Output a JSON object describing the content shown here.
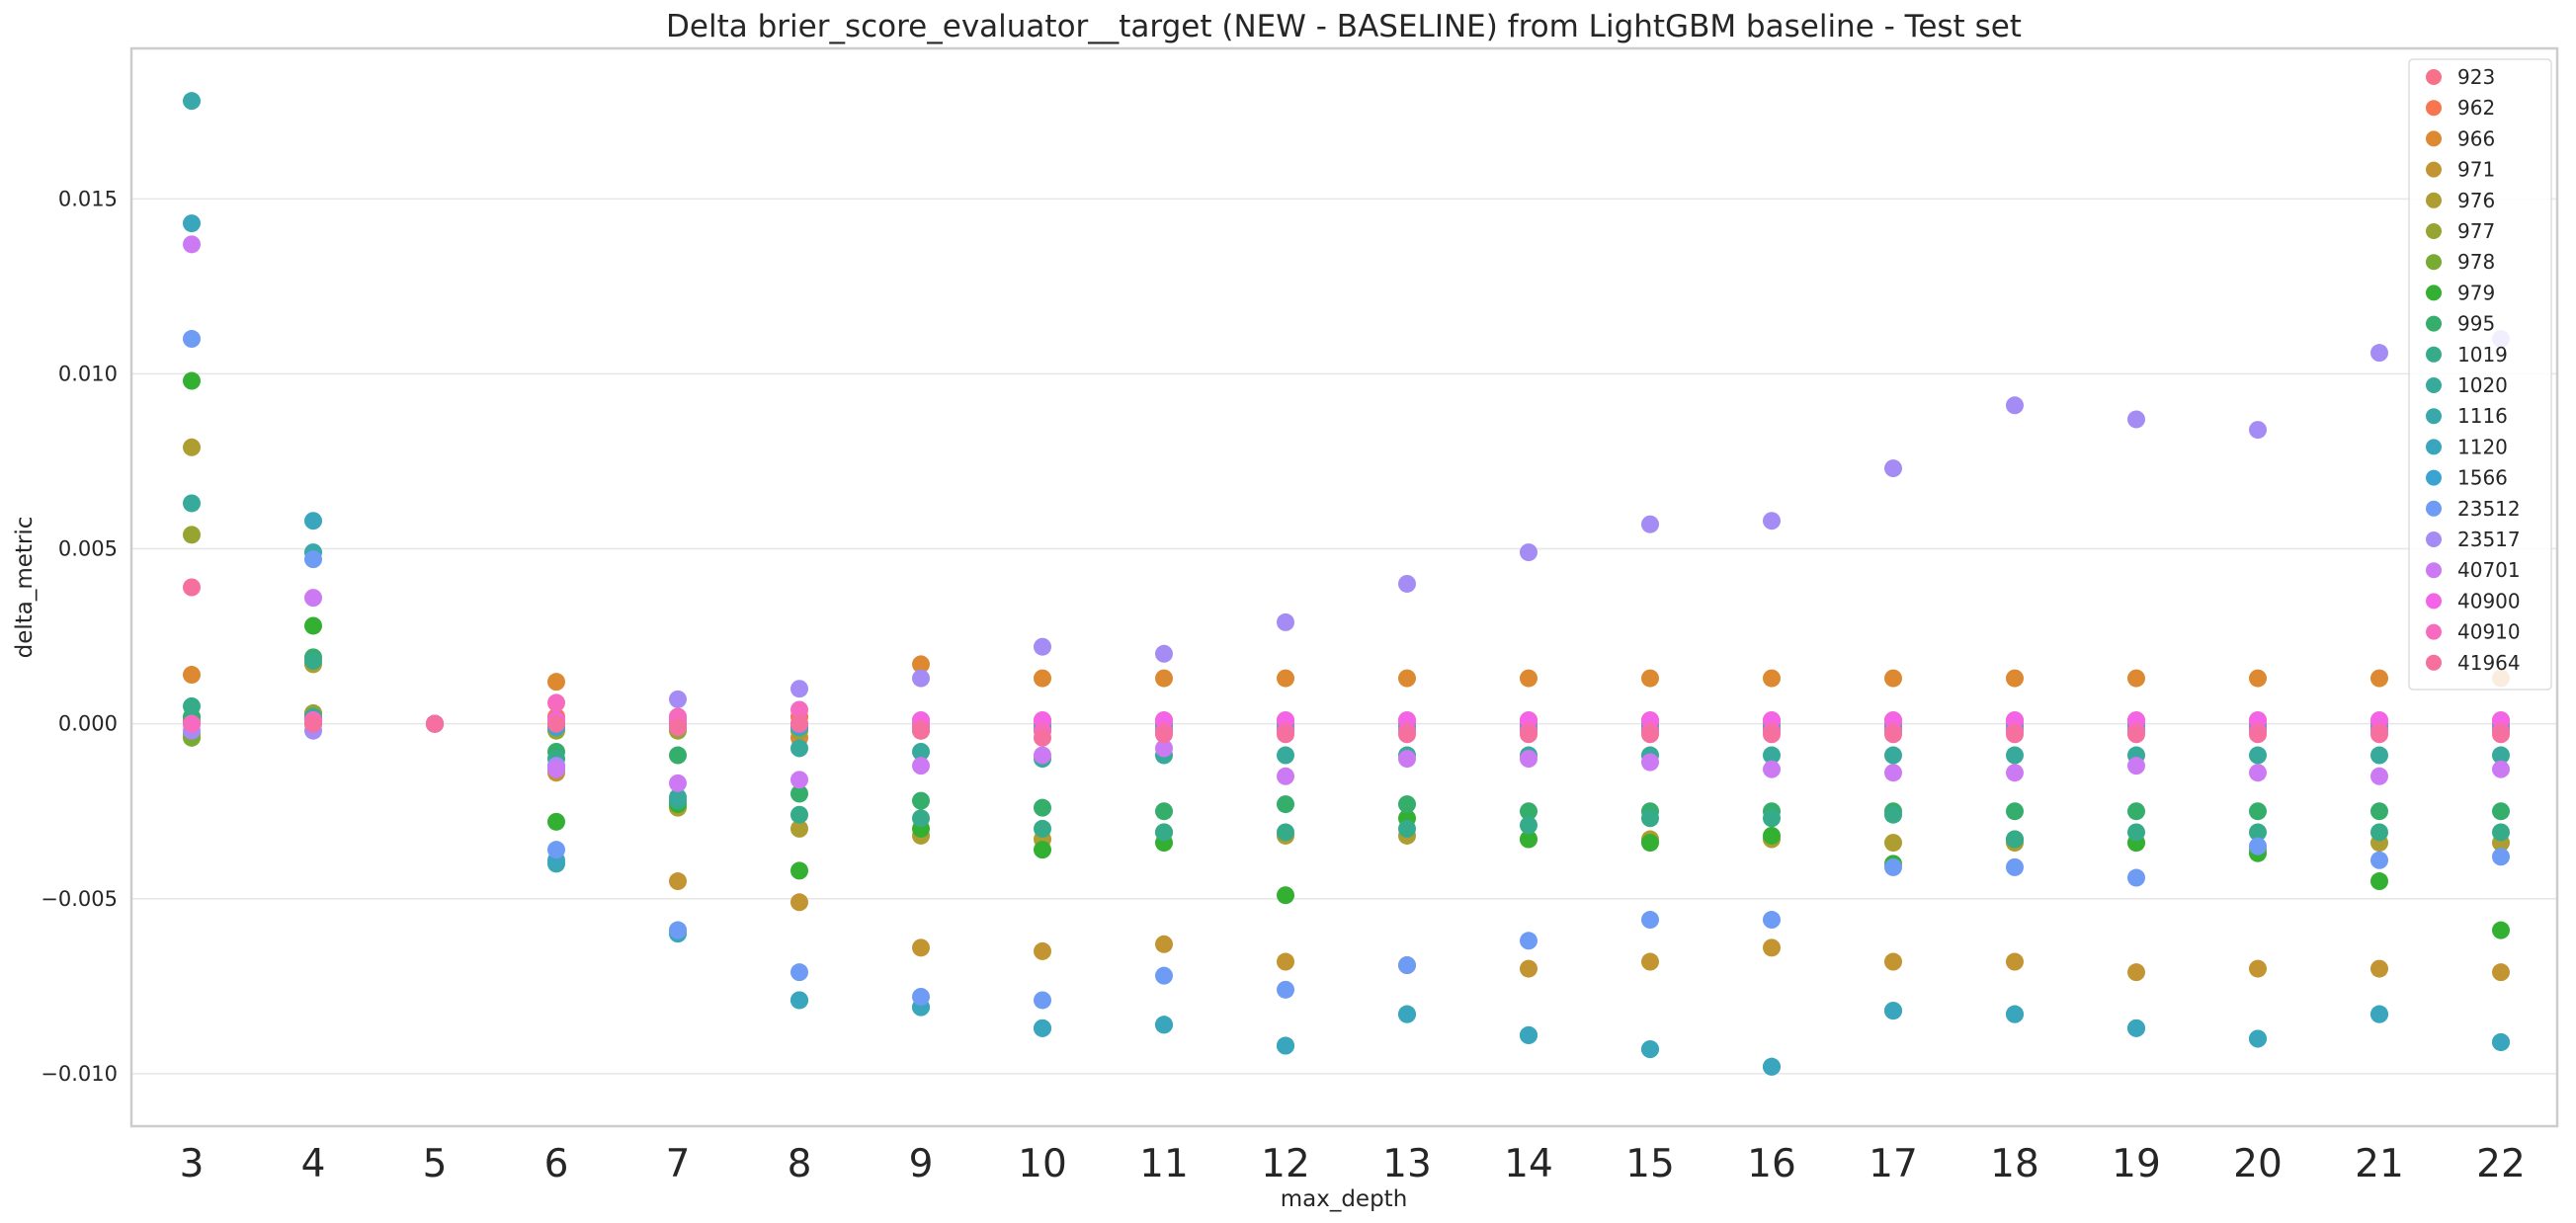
{
  "chart_data": {
    "type": "scatter",
    "title": "Delta brier_score_evaluator__target (NEW - BASELINE) from LightGBM baseline - Test set",
    "xlabel": "max_depth",
    "ylabel": "delta_metric",
    "categories": [
      "3",
      "4",
      "5",
      "6",
      "7",
      "8",
      "9",
      "10",
      "11",
      "12",
      "13",
      "14",
      "15",
      "16",
      "17",
      "18",
      "19",
      "20",
      "21",
      "22"
    ],
    "ylim": [
      -0.0115,
      0.0193
    ],
    "yticks": [
      -0.01,
      -0.005,
      0.0,
      0.005,
      0.01,
      0.015
    ],
    "ytick_labels": [
      "−0.010",
      "−0.005",
      "0.000",
      "0.005",
      "0.010",
      "0.015"
    ],
    "grid": "horizontal",
    "legend_position": "top-right",
    "series": [
      {
        "name": "923",
        "color": "#f77189",
        "values": [
          0.0,
          0.0,
          0.0,
          0.0,
          0.0,
          0.0,
          0.0,
          0.0,
          0.0,
          0.0,
          0.0,
          0.0,
          0.0,
          0.0,
          0.0,
          0.0,
          0.0,
          0.0,
          0.0,
          0.0
        ]
      },
      {
        "name": "962",
        "color": "#f7754f",
        "values": [
          0.0001,
          0.0002,
          0.0,
          0.0002,
          0.0002,
          0.0002,
          0.0001,
          0.0001,
          0.0001,
          0.0001,
          0.0001,
          0.0001,
          0.0001,
          0.0001,
          0.0001,
          0.0001,
          0.0001,
          0.0001,
          0.0001,
          0.0001
        ]
      },
      {
        "name": "966",
        "color": "#dc8932",
        "values": [
          0.0014,
          0.0003,
          0.0,
          0.0012,
          0.0001,
          -0.0004,
          0.0017,
          0.0013,
          0.0013,
          0.0013,
          0.0013,
          0.0013,
          0.0013,
          0.0013,
          0.0013,
          0.0013,
          0.0013,
          0.0013,
          0.0013,
          0.0013
        ]
      },
      {
        "name": "971",
        "color": "#c39532",
        "values": [
          -0.0003,
          0.0001,
          0.0,
          -0.0014,
          -0.0045,
          -0.0051,
          -0.0064,
          -0.0065,
          -0.0063,
          -0.0068,
          -0.0069,
          -0.007,
          -0.0068,
          -0.0064,
          -0.0068,
          -0.0068,
          -0.0071,
          -0.007,
          -0.007,
          -0.0071
        ]
      },
      {
        "name": "976",
        "color": "#ae9d31",
        "values": [
          0.0079,
          0.0017,
          0.0,
          -0.0012,
          -0.0024,
          -0.003,
          -0.0032,
          -0.0033,
          -0.0031,
          -0.0032,
          -0.0032,
          -0.0033,
          -0.0033,
          -0.0033,
          -0.0034,
          -0.0034,
          -0.0034,
          -0.0036,
          -0.0034,
          -0.0034
        ]
      },
      {
        "name": "977",
        "color": "#97a431",
        "values": [
          0.0054,
          0.0003,
          0.0,
          -0.0002,
          -0.0002,
          -0.0002,
          -0.0002,
          -0.0002,
          -0.0002,
          -0.0002,
          -0.0002,
          -0.0002,
          -0.0002,
          -0.0002,
          -0.0002,
          -0.0002,
          -0.0002,
          -0.0002,
          -0.0002,
          -0.0002
        ]
      },
      {
        "name": "978",
        "color": "#77ab31",
        "values": [
          -0.0004,
          0.0,
          0.0,
          -0.0001,
          -0.0001,
          -0.0001,
          -0.0001,
          -0.0001,
          -0.0001,
          -0.0001,
          -0.0001,
          -0.0001,
          -0.0001,
          -0.0001,
          -0.0001,
          -0.0001,
          -0.0001,
          -0.0001,
          -0.0001,
          -0.0001
        ]
      },
      {
        "name": "979",
        "color": "#33b032",
        "values": [
          0.0098,
          0.0028,
          0.0,
          -0.0028,
          -0.0023,
          -0.0042,
          -0.003,
          -0.0036,
          -0.0034,
          -0.0049,
          -0.0027,
          -0.0033,
          -0.0034,
          -0.0032,
          -0.004,
          -0.0033,
          -0.0034,
          -0.0037,
          -0.0045,
          -0.0059
        ]
      },
      {
        "name": "995",
        "color": "#35ad6b",
        "values": [
          0.0002,
          0.0019,
          0.0,
          -0.0008,
          -0.0009,
          -0.002,
          -0.0022,
          -0.0024,
          -0.0025,
          -0.0023,
          -0.0023,
          -0.0025,
          -0.0025,
          -0.0025,
          -0.0025,
          -0.0025,
          -0.0025,
          -0.0025,
          -0.0025,
          -0.0025
        ]
      },
      {
        "name": "1019",
        "color": "#36ab8a",
        "values": [
          0.0005,
          0.0018,
          0.0,
          -0.001,
          -0.0022,
          -0.0026,
          -0.0027,
          -0.003,
          -0.0031,
          -0.0031,
          -0.003,
          -0.0029,
          -0.0027,
          -0.0027,
          -0.0026,
          -0.0033,
          -0.0031,
          -0.0031,
          -0.0031,
          -0.0031
        ]
      },
      {
        "name": "1020",
        "color": "#37aa9c",
        "values": [
          0.0063,
          0.0002,
          0.0,
          -0.0013,
          -0.0021,
          -0.0007,
          -0.0008,
          -0.001,
          -0.0009,
          -0.0009,
          -0.0009,
          -0.0009,
          -0.0009,
          -0.0009,
          -0.0009,
          -0.0009,
          -0.0009,
          -0.0009,
          -0.0009,
          -0.0009
        ]
      },
      {
        "name": "1116",
        "color": "#39a8ab",
        "values": [
          0.0178,
          0.0049,
          0.0,
          -0.004,
          -0.0059,
          -0.0079,
          -0.0081,
          -0.0087,
          -0.0086,
          -0.0092,
          -0.0083,
          -0.0089,
          -0.0093,
          -0.0098,
          -0.0082,
          -0.0083,
          -0.0087,
          -0.009,
          -0.0083,
          -0.0091
        ]
      },
      {
        "name": "1120",
        "color": "#3aa6bd",
        "values": [
          0.0143,
          0.0058,
          0.0,
          -0.0039,
          -0.006,
          -0.0079,
          -0.0081,
          -0.0087,
          -0.0086,
          -0.0092,
          -0.0083,
          -0.0089,
          -0.0093,
          -0.0098,
          -0.0082,
          -0.0083,
          -0.0087,
          -0.009,
          -0.0083,
          -0.0091
        ]
      },
      {
        "name": "1566",
        "color": "#3ba3d2",
        "values": [
          0.0,
          0.0,
          0.0,
          -0.0001,
          -0.0001,
          -0.0001,
          -0.0001,
          -0.0001,
          -0.0001,
          -0.0001,
          -0.0001,
          -0.0001,
          -0.0001,
          -0.0001,
          -0.0001,
          -0.0001,
          -0.0001,
          -0.0001,
          -0.0001,
          -0.0001
        ]
      },
      {
        "name": "23512",
        "color": "#6e9bf4",
        "values": [
          0.011,
          0.0047,
          0.0,
          -0.0036,
          -0.0059,
          -0.0071,
          -0.0078,
          -0.0079,
          -0.0072,
          -0.0076,
          -0.0069,
          -0.0062,
          -0.0056,
          -0.0056,
          -0.0041,
          -0.0041,
          -0.0044,
          -0.0035,
          -0.0039,
          -0.0038
        ]
      },
      {
        "name": "23517",
        "color": "#a48cf4",
        "values": [
          -0.0002,
          -0.0002,
          0.0,
          -0.0012,
          0.0007,
          0.001,
          0.0013,
          0.0022,
          0.002,
          0.0029,
          0.004,
          0.0049,
          0.0057,
          0.0058,
          0.0073,
          0.0091,
          0.0087,
          0.0084,
          0.0106,
          0.011
        ]
      },
      {
        "name": "40701",
        "color": "#cc7af4",
        "values": [
          0.0137,
          0.0036,
          0.0,
          -0.0013,
          -0.0017,
          -0.0016,
          -0.0012,
          -0.0009,
          -0.0007,
          -0.0015,
          -0.001,
          -0.001,
          -0.0011,
          -0.0013,
          -0.0014,
          -0.0014,
          -0.0012,
          -0.0014,
          -0.0015,
          -0.0013
        ]
      },
      {
        "name": "40900",
        "color": "#f365e6",
        "values": [
          0.0,
          0.0001,
          0.0,
          0.0001,
          0.0001,
          0.0,
          0.0001,
          0.0001,
          0.0001,
          0.0001,
          0.0001,
          0.0001,
          0.0001,
          0.0001,
          0.0001,
          0.0001,
          0.0001,
          0.0001,
          0.0001,
          0.0001
        ]
      },
      {
        "name": "40910",
        "color": "#f66bc0",
        "values": [
          0.0,
          0.0001,
          0.0,
          0.0006,
          0.0002,
          0.0004,
          -0.0001,
          -0.0002,
          -0.0002,
          -0.0002,
          -0.0002,
          -0.0002,
          -0.0002,
          -0.0002,
          -0.0002,
          -0.0002,
          -0.0002,
          -0.0002,
          -0.0002,
          -0.0002
        ]
      },
      {
        "name": "41964",
        "color": "#f6709f",
        "values": [
          0.0039,
          0.0,
          0.0,
          0.0,
          -0.0001,
          0.0,
          -0.0002,
          -0.0004,
          -0.0003,
          -0.0003,
          -0.0003,
          -0.0003,
          -0.0003,
          -0.0003,
          -0.0003,
          -0.0003,
          -0.0003,
          -0.0003,
          -0.0003,
          -0.0003
        ]
      }
    ]
  }
}
